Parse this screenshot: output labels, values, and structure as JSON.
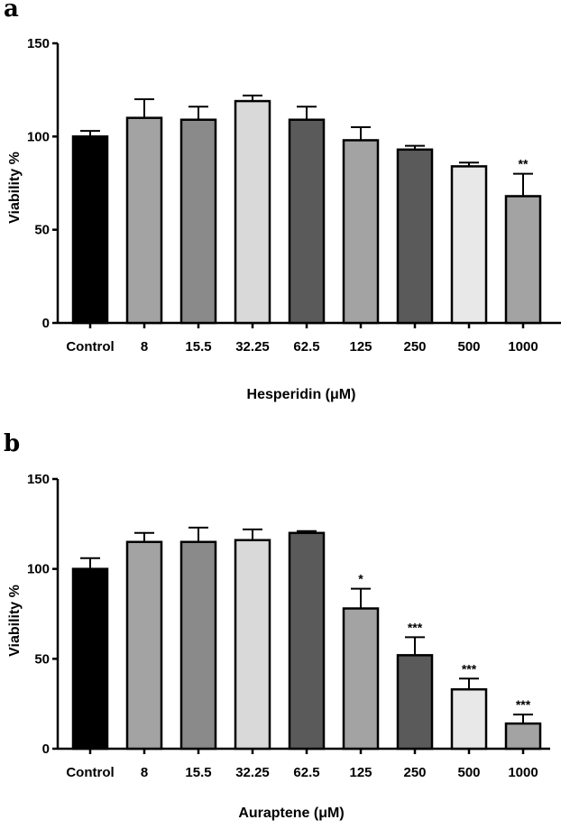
{
  "chart_data": [
    {
      "type": "bar",
      "panel": "a",
      "title": "",
      "xlabel": "Hesperidin (μM)",
      "ylabel": "Viability %",
      "ylim": [
        0,
        150
      ],
      "yticks": [
        "0",
        "50",
        "100",
        "150"
      ],
      "categories": [
        "Control",
        "8",
        "15.5",
        "32.25",
        "62.5",
        "125",
        "250",
        "500",
        "1000"
      ],
      "values": [
        100,
        110,
        109,
        119,
        109,
        98,
        93,
        84,
        68
      ],
      "errors": [
        3,
        10,
        7,
        3,
        7,
        7,
        2,
        2,
        12
      ],
      "significance": [
        "",
        "",
        "",
        "",
        "",
        "",
        "",
        "",
        "**"
      ],
      "colors": [
        "#000000",
        "#a3a3a3",
        "#8a8a8a",
        "#d9d9d9",
        "#5a5a5a",
        "#a3a3a3",
        "#5a5a5a",
        "#e8e8e8",
        "#a3a3a3"
      ]
    },
    {
      "type": "bar",
      "panel": "b",
      "title": "",
      "xlabel": "Auraptene (μM)",
      "ylabel": "Viability %",
      "ylim": [
        0,
        150
      ],
      "yticks": [
        "0",
        "50",
        "100",
        "150"
      ],
      "categories": [
        "Control",
        "8",
        "15.5",
        "32.25",
        "62.5",
        "125",
        "250",
        "500",
        "1000"
      ],
      "values": [
        100,
        115,
        115,
        116,
        120,
        78,
        52,
        33,
        14
      ],
      "errors": [
        6,
        5,
        8,
        6,
        1,
        11,
        10,
        6,
        5
      ],
      "significance": [
        "",
        "",
        "",
        "",
        "",
        "*",
        "***",
        "***",
        "***"
      ],
      "colors": [
        "#000000",
        "#a3a3a3",
        "#8a8a8a",
        "#d9d9d9",
        "#5a5a5a",
        "#a3a3a3",
        "#5a5a5a",
        "#e8e8e8",
        "#a3a3a3"
      ]
    }
  ]
}
